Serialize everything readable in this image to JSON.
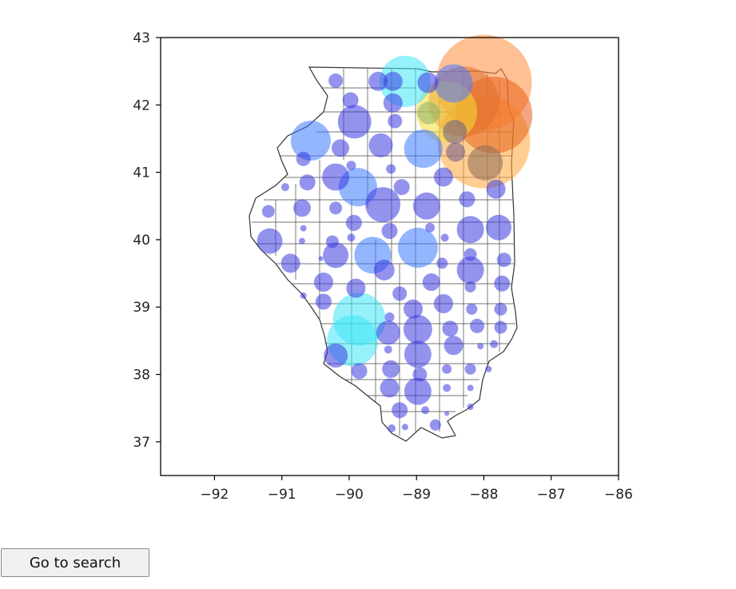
{
  "chart_data": {
    "type": "scatter",
    "subtype": "bubble-map",
    "title": "",
    "xlabel": "",
    "ylabel": "",
    "xlim": [
      -92.8,
      -86
    ],
    "ylim": [
      36.5,
      43
    ],
    "xticks": [
      -92,
      -91,
      -90,
      -89,
      -88,
      -87,
      -86
    ],
    "xtick_labels": [
      "−92",
      "−91",
      "−90",
      "−89",
      "−88",
      "−87",
      "−86"
    ],
    "yticks": [
      37,
      38,
      39,
      40,
      41,
      42,
      43
    ],
    "ytick_labels": [
      "37",
      "38",
      "39",
      "40",
      "41",
      "42",
      "43"
    ],
    "grid": false,
    "legend": "none",
    "basemap": "Illinois county boundaries",
    "points": [
      {
        "x": -88.0,
        "y": 42.33,
        "r": 60,
        "color": "#ff8c3a"
      },
      {
        "x": -87.85,
        "y": 41.85,
        "r": 48,
        "color": "#e8601c"
      },
      {
        "x": -88.0,
        "y": 41.45,
        "r": 58,
        "color": "#ffa63a"
      },
      {
        "x": -88.3,
        "y": 42.05,
        "r": 44,
        "color": "#e07030"
      },
      {
        "x": -88.55,
        "y": 41.9,
        "r": 38,
        "color": "#f2dd36"
      },
      {
        "x": -88.82,
        "y": 41.88,
        "r": 14,
        "color": "#8ab36a"
      },
      {
        "x": -87.98,
        "y": 41.14,
        "r": 22,
        "color": "#8a6a5a"
      },
      {
        "x": -88.43,
        "y": 41.6,
        "r": 15,
        "color": "#6a5a8a"
      },
      {
        "x": -88.42,
        "y": 41.3,
        "r": 12,
        "color": "#6a5a8a"
      },
      {
        "x": -88.45,
        "y": 42.32,
        "r": 24,
        "color": "#4a7aff"
      },
      {
        "x": -88.83,
        "y": 42.33,
        "r": 13,
        "color": "#3a3ae0"
      },
      {
        "x": -89.17,
        "y": 42.35,
        "r": 32,
        "color": "#3ee6f5"
      },
      {
        "x": -89.35,
        "y": 42.35,
        "r": 12,
        "color": "#3a3ae0"
      },
      {
        "x": -89.35,
        "y": 42.03,
        "r": 12,
        "color": "#3a3ae0"
      },
      {
        "x": -89.57,
        "y": 42.35,
        "r": 12,
        "color": "#3a3ae0"
      },
      {
        "x": -90.2,
        "y": 42.36,
        "r": 9,
        "color": "#3a3ae0"
      },
      {
        "x": -89.98,
        "y": 42.07,
        "r": 10,
        "color": "#3a3ae0"
      },
      {
        "x": -89.92,
        "y": 41.75,
        "r": 21,
        "color": "#3a3ae0"
      },
      {
        "x": -89.32,
        "y": 41.76,
        "r": 9,
        "color": "#3a3ae0"
      },
      {
        "x": -90.57,
        "y": 41.47,
        "r": 25,
        "color": "#3a7aff"
      },
      {
        "x": -90.13,
        "y": 41.36,
        "r": 11,
        "color": "#3a3ae0"
      },
      {
        "x": -89.53,
        "y": 41.4,
        "r": 15,
        "color": "#3a3ae0"
      },
      {
        "x": -88.9,
        "y": 41.35,
        "r": 24,
        "color": "#3a7aff"
      },
      {
        "x": -90.68,
        "y": 41.2,
        "r": 9,
        "color": "#3a3ae0"
      },
      {
        "x": -90.2,
        "y": 40.93,
        "r": 17,
        "color": "#3a3ae0"
      },
      {
        "x": -89.97,
        "y": 41.1,
        "r": 6,
        "color": "#3a3ae0"
      },
      {
        "x": -89.38,
        "y": 41.05,
        "r": 6,
        "color": "#3a3ae0"
      },
      {
        "x": -88.6,
        "y": 40.93,
        "r": 12,
        "color": "#3a3ae0"
      },
      {
        "x": -90.62,
        "y": 40.85,
        "r": 10,
        "color": "#3a3ae0"
      },
      {
        "x": -89.87,
        "y": 40.78,
        "r": 24,
        "color": "#3a7aff"
      },
      {
        "x": -89.22,
        "y": 40.78,
        "r": 10,
        "color": "#3a3ae0"
      },
      {
        "x": -88.25,
        "y": 40.6,
        "r": 10,
        "color": "#3a3ae0"
      },
      {
        "x": -87.82,
        "y": 40.75,
        "r": 12,
        "color": "#3a3ae0"
      },
      {
        "x": -90.95,
        "y": 40.78,
        "r": 5,
        "color": "#3a3ae0"
      },
      {
        "x": -90.7,
        "y": 40.47,
        "r": 11,
        "color": "#3a3ae0"
      },
      {
        "x": -90.2,
        "y": 40.47,
        "r": 8,
        "color": "#3a3ae0"
      },
      {
        "x": -89.5,
        "y": 40.52,
        "r": 22,
        "color": "#3a3ae0"
      },
      {
        "x": -88.85,
        "y": 40.5,
        "r": 17,
        "color": "#3a3ae0"
      },
      {
        "x": -91.2,
        "y": 40.42,
        "r": 8,
        "color": "#3a3ae0"
      },
      {
        "x": -89.93,
        "y": 40.25,
        "r": 10,
        "color": "#3a3ae0"
      },
      {
        "x": -88.2,
        "y": 40.15,
        "r": 17,
        "color": "#3a3ae0"
      },
      {
        "x": -87.78,
        "y": 40.18,
        "r": 16,
        "color": "#3a3ae0"
      },
      {
        "x": -89.4,
        "y": 40.13,
        "r": 10,
        "color": "#3a3ae0"
      },
      {
        "x": -88.8,
        "y": 40.18,
        "r": 6,
        "color": "#3a3ae0"
      },
      {
        "x": -90.68,
        "y": 40.17,
        "r": 4,
        "color": "#3a3ae0"
      },
      {
        "x": -91.18,
        "y": 39.98,
        "r": 16,
        "color": "#3a3ae0"
      },
      {
        "x": -90.7,
        "y": 39.98,
        "r": 4,
        "color": "#3a3ae0"
      },
      {
        "x": -90.25,
        "y": 39.97,
        "r": 8,
        "color": "#3a3ae0"
      },
      {
        "x": -89.97,
        "y": 40.03,
        "r": 5,
        "color": "#3a3ae0"
      },
      {
        "x": -88.58,
        "y": 40.03,
        "r": 5,
        "color": "#3a3ae0"
      },
      {
        "x": -89.65,
        "y": 39.77,
        "r": 23,
        "color": "#3a7aff"
      },
      {
        "x": -88.98,
        "y": 39.88,
        "r": 25,
        "color": "#3a7aff"
      },
      {
        "x": -90.2,
        "y": 39.77,
        "r": 16,
        "color": "#3a3ae0"
      },
      {
        "x": -88.2,
        "y": 39.78,
        "r": 8,
        "color": "#3a3ae0"
      },
      {
        "x": -87.7,
        "y": 39.7,
        "r": 9,
        "color": "#3a3ae0"
      },
      {
        "x": -90.87,
        "y": 39.65,
        "r": 12,
        "color": "#3a3ae0"
      },
      {
        "x": -90.42,
        "y": 39.72,
        "r": 3,
        "color": "#3a3ae0"
      },
      {
        "x": -89.48,
        "y": 39.55,
        "r": 13,
        "color": "#3a3ae0"
      },
      {
        "x": -88.62,
        "y": 39.65,
        "r": 7,
        "color": "#3a3ae0"
      },
      {
        "x": -88.2,
        "y": 39.55,
        "r": 17,
        "color": "#3a3ae0"
      },
      {
        "x": -90.38,
        "y": 39.37,
        "r": 12,
        "color": "#3a3ae0"
      },
      {
        "x": -89.9,
        "y": 39.28,
        "r": 12,
        "color": "#3a3ae0"
      },
      {
        "x": -89.25,
        "y": 39.2,
        "r": 9,
        "color": "#3a3ae0"
      },
      {
        "x": -88.78,
        "y": 39.37,
        "r": 11,
        "color": "#3a3ae0"
      },
      {
        "x": -88.2,
        "y": 39.3,
        "r": 7,
        "color": "#3a3ae0"
      },
      {
        "x": -87.73,
        "y": 39.35,
        "r": 10,
        "color": "#3a3ae0"
      },
      {
        "x": -90.68,
        "y": 39.17,
        "r": 4,
        "color": "#3a3ae0"
      },
      {
        "x": -90.38,
        "y": 39.08,
        "r": 10,
        "color": "#3a3ae0"
      },
      {
        "x": -89.85,
        "y": 38.82,
        "r": 33,
        "color": "#3ee6f5"
      },
      {
        "x": -89.05,
        "y": 38.97,
        "r": 12,
        "color": "#3a3ae0"
      },
      {
        "x": -88.6,
        "y": 39.05,
        "r": 12,
        "color": "#3a3ae0"
      },
      {
        "x": -88.18,
        "y": 38.97,
        "r": 7,
        "color": "#3a3ae0"
      },
      {
        "x": -87.75,
        "y": 38.97,
        "r": 8,
        "color": "#3a3ae0"
      },
      {
        "x": -89.4,
        "y": 38.85,
        "r": 6,
        "color": "#3a3ae0"
      },
      {
        "x": -88.5,
        "y": 38.68,
        "r": 10,
        "color": "#3a3ae0"
      },
      {
        "x": -88.1,
        "y": 38.72,
        "r": 9,
        "color": "#3a3ae0"
      },
      {
        "x": -87.75,
        "y": 38.7,
        "r": 8,
        "color": "#3a3ae0"
      },
      {
        "x": -89.95,
        "y": 38.5,
        "r": 32,
        "color": "#3ee6f5"
      },
      {
        "x": -89.42,
        "y": 38.62,
        "r": 15,
        "color": "#3a3ae0"
      },
      {
        "x": -88.98,
        "y": 38.67,
        "r": 18,
        "color": "#3a3ae0"
      },
      {
        "x": -88.45,
        "y": 38.43,
        "r": 12,
        "color": "#3a3ae0"
      },
      {
        "x": -88.05,
        "y": 38.42,
        "r": 4,
        "color": "#3a3ae0"
      },
      {
        "x": -87.85,
        "y": 38.45,
        "r": 5,
        "color": "#3a3ae0"
      },
      {
        "x": -90.2,
        "y": 38.28,
        "r": 15,
        "color": "#3a3ae0"
      },
      {
        "x": -89.42,
        "y": 38.37,
        "r": 5,
        "color": "#3a3ae0"
      },
      {
        "x": -88.98,
        "y": 38.3,
        "r": 17,
        "color": "#3a3ae0"
      },
      {
        "x": -89.85,
        "y": 38.05,
        "r": 10,
        "color": "#3a3ae0"
      },
      {
        "x": -89.38,
        "y": 38.08,
        "r": 11,
        "color": "#3a3ae0"
      },
      {
        "x": -88.95,
        "y": 38.0,
        "r": 9,
        "color": "#3a3ae0"
      },
      {
        "x": -88.55,
        "y": 38.08,
        "r": 6,
        "color": "#3a3ae0"
      },
      {
        "x": -88.2,
        "y": 38.08,
        "r": 7,
        "color": "#3a3ae0"
      },
      {
        "x": -87.93,
        "y": 38.08,
        "r": 4,
        "color": "#3a3ae0"
      },
      {
        "x": -89.4,
        "y": 37.8,
        "r": 12,
        "color": "#3a3ae0"
      },
      {
        "x": -88.98,
        "y": 37.75,
        "r": 17,
        "color": "#3a3ae0"
      },
      {
        "x": -88.55,
        "y": 37.8,
        "r": 5,
        "color": "#3a3ae0"
      },
      {
        "x": -88.2,
        "y": 37.8,
        "r": 4,
        "color": "#3a3ae0"
      },
      {
        "x": -89.25,
        "y": 37.47,
        "r": 10,
        "color": "#3a3ae0"
      },
      {
        "x": -88.87,
        "y": 37.47,
        "r": 5,
        "color": "#3a3ae0"
      },
      {
        "x": -88.55,
        "y": 37.42,
        "r": 3,
        "color": "#3a3ae0"
      },
      {
        "x": -88.2,
        "y": 37.52,
        "r": 4,
        "color": "#3a3ae0"
      },
      {
        "x": -89.37,
        "y": 37.2,
        "r": 5,
        "color": "#3a3ae0"
      },
      {
        "x": -89.17,
        "y": 37.22,
        "r": 4,
        "color": "#3a3ae0"
      },
      {
        "x": -88.72,
        "y": 37.25,
        "r": 7,
        "color": "#3a3ae0"
      }
    ]
  },
  "button": {
    "label": "Go to search"
  }
}
